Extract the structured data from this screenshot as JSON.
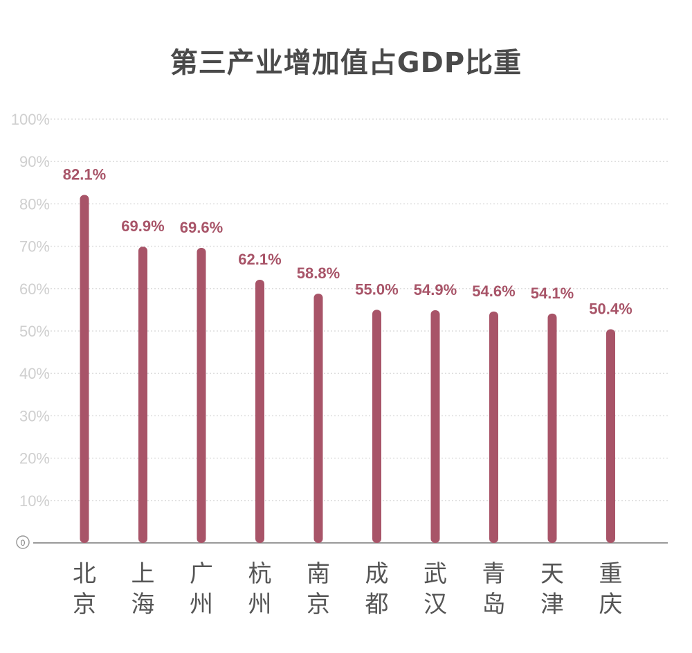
{
  "chart_data": {
    "type": "bar",
    "title": "第三产业增加值占GDP比重",
    "categories": [
      "北京",
      "上海",
      "广州",
      "杭州",
      "南京",
      "成都",
      "武汉",
      "青岛",
      "天津",
      "重庆"
    ],
    "values": [
      82.1,
      69.9,
      69.6,
      62.1,
      58.8,
      55.0,
      54.9,
      54.6,
      54.1,
      50.4
    ],
    "value_labels": [
      "82.1%",
      "69.9%",
      "69.6%",
      "62.1%",
      "58.8%",
      "55.0%",
      "54.9%",
      "54.6%",
      "54.1%",
      "50.4%"
    ],
    "ylim": [
      0,
      100
    ],
    "y_ticks": [
      {
        "value": 0,
        "label": "0"
      },
      {
        "value": 10,
        "label": "10%"
      },
      {
        "value": 20,
        "label": "20%"
      },
      {
        "value": 30,
        "label": "30%"
      },
      {
        "value": 40,
        "label": "40%"
      },
      {
        "value": 50,
        "label": "50%"
      },
      {
        "value": 60,
        "label": "60%"
      },
      {
        "value": 70,
        "label": "70%"
      },
      {
        "value": 80,
        "label": "80%"
      },
      {
        "value": 90,
        "label": "90%"
      },
      {
        "value": 100,
        "label": "100%"
      }
    ],
    "grid": true,
    "xlabel": "",
    "ylabel": "",
    "colors": {
      "bar": "#a85468",
      "value_label": "#a85468",
      "grid": "#dedede",
      "axis": "#9a9a9a"
    }
  }
}
